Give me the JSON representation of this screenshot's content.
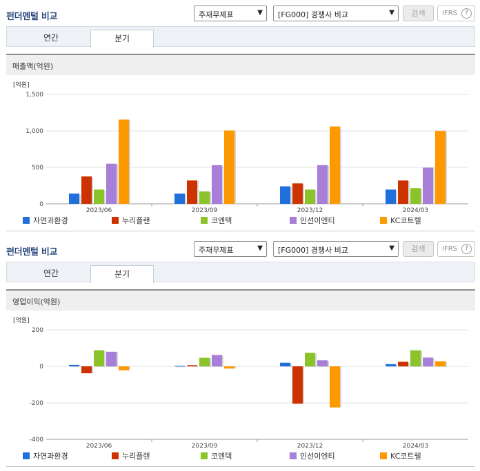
{
  "panels": [
    {
      "title": "펀더멘털 비교",
      "select_a": "주재무제표",
      "select_b": "[FG000] 경쟁사 비교",
      "search_label": "검색",
      "ifrs_label": "IFRS",
      "ifrs_help": "?",
      "tabs": [
        "연간",
        "분기"
      ],
      "active_tab": "분기",
      "section_title": "매출액(억원)"
    },
    {
      "title": "펀더멘털 비교",
      "select_a": "주재무제표",
      "select_b": "[FG000] 경쟁사 비교",
      "search_label": "검색",
      "ifrs_label": "IFRS",
      "ifrs_help": "?",
      "tabs": [
        "연간",
        "분기"
      ],
      "active_tab": "분기",
      "section_title": "영업이익(억원)"
    }
  ],
  "colors": {
    "series": [
      "#1f6fdc",
      "#cc3300",
      "#8ac42a",
      "#a77ed8",
      "#ff9900"
    ],
    "accent": "#2a4a7e"
  },
  "chart_data": [
    {
      "type": "bar",
      "unit_label": "[억원]",
      "categories": [
        "2023/06",
        "2023/09",
        "2023/12",
        "2024/03"
      ],
      "ylim": [
        0,
        1500
      ],
      "yticks": [
        0,
        500,
        1000,
        1500
      ],
      "ytick_labels": [
        "0",
        "500",
        "1,000",
        "1,500"
      ],
      "grid": true,
      "legend_position": "bottom",
      "series": [
        {
          "name": "자연과환경",
          "values": [
            140,
            140,
            240,
            195
          ]
        },
        {
          "name": "누리플랜",
          "values": [
            375,
            320,
            280,
            320
          ]
        },
        {
          "name": "코엔텍",
          "values": [
            195,
            170,
            195,
            215
          ]
        },
        {
          "name": "인선이엔티",
          "values": [
            550,
            530,
            530,
            495
          ]
        },
        {
          "name": "KC코트렐",
          "values": [
            1155,
            1005,
            1060,
            1000
          ]
        }
      ]
    },
    {
      "type": "bar",
      "unit_label": "[억원]",
      "categories": [
        "2023/06",
        "2023/09",
        "2023/12",
        "2024/03"
      ],
      "ylim": [
        -400,
        200
      ],
      "yticks": [
        -400,
        -200,
        0,
        200
      ],
      "ytick_labels": [
        "-400",
        "-200",
        "0",
        "200"
      ],
      "grid": true,
      "legend_position": "bottom",
      "series": [
        {
          "name": "자연과환경",
          "values": [
            8,
            3,
            20,
            12
          ]
        },
        {
          "name": "누리플랜",
          "values": [
            -38,
            6,
            -205,
            25
          ]
        },
        {
          "name": "코엔텍",
          "values": [
            88,
            47,
            74,
            88
          ]
        },
        {
          "name": "인선이엔티",
          "values": [
            80,
            62,
            33,
            48
          ]
        },
        {
          "name": "KC코트렐",
          "values": [
            -22,
            -12,
            -225,
            28
          ]
        }
      ]
    }
  ]
}
